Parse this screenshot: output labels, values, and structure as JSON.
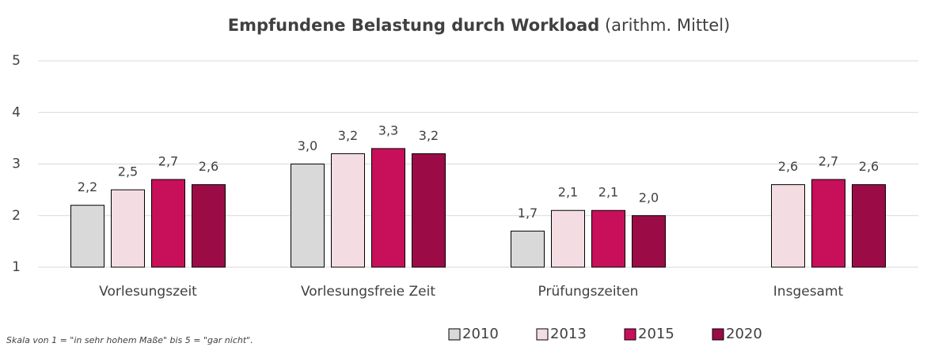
{
  "chart_data": {
    "type": "bar",
    "title": "Empfundene Belastung durch Workload",
    "subtitle": "(arithm. Mittel)",
    "note": "Skala von 1 = \"in sehr hohem Maße\" bis 5 = \"gar nicht\".",
    "categories": [
      "Vorlesungszeit",
      "Vorlesungsfreie Zeit",
      "Prüfungszeiten",
      "Insgesamt"
    ],
    "series": [
      {
        "name": "2010",
        "color": "#d9d9d9",
        "values": [
          2.2,
          3.0,
          1.7,
          null
        ],
        "value_labels": [
          "2,2",
          "3,0",
          "1,7",
          null
        ]
      },
      {
        "name": "2013",
        "color": "#f4dde2",
        "values": [
          2.5,
          3.2,
          2.1,
          2.6
        ],
        "value_labels": [
          "2,5",
          "3,2",
          "2,1",
          "2,6"
        ]
      },
      {
        "name": "2015",
        "color": "#c8105a",
        "values": [
          2.7,
          3.3,
          2.1,
          2.7
        ],
        "value_labels": [
          "2,7",
          "3,3",
          "2,1",
          "2,7"
        ]
      },
      {
        "name": "2020",
        "color": "#9b0c47",
        "values": [
          2.6,
          3.2,
          2.0,
          2.6
        ],
        "value_labels": [
          "2,6",
          "3,2",
          "2,0",
          "2,6"
        ]
      }
    ],
    "ylim": [
      1,
      5
    ],
    "yticks": [
      1,
      2,
      3,
      4,
      5
    ],
    "grid": true,
    "legend": "bottom"
  }
}
